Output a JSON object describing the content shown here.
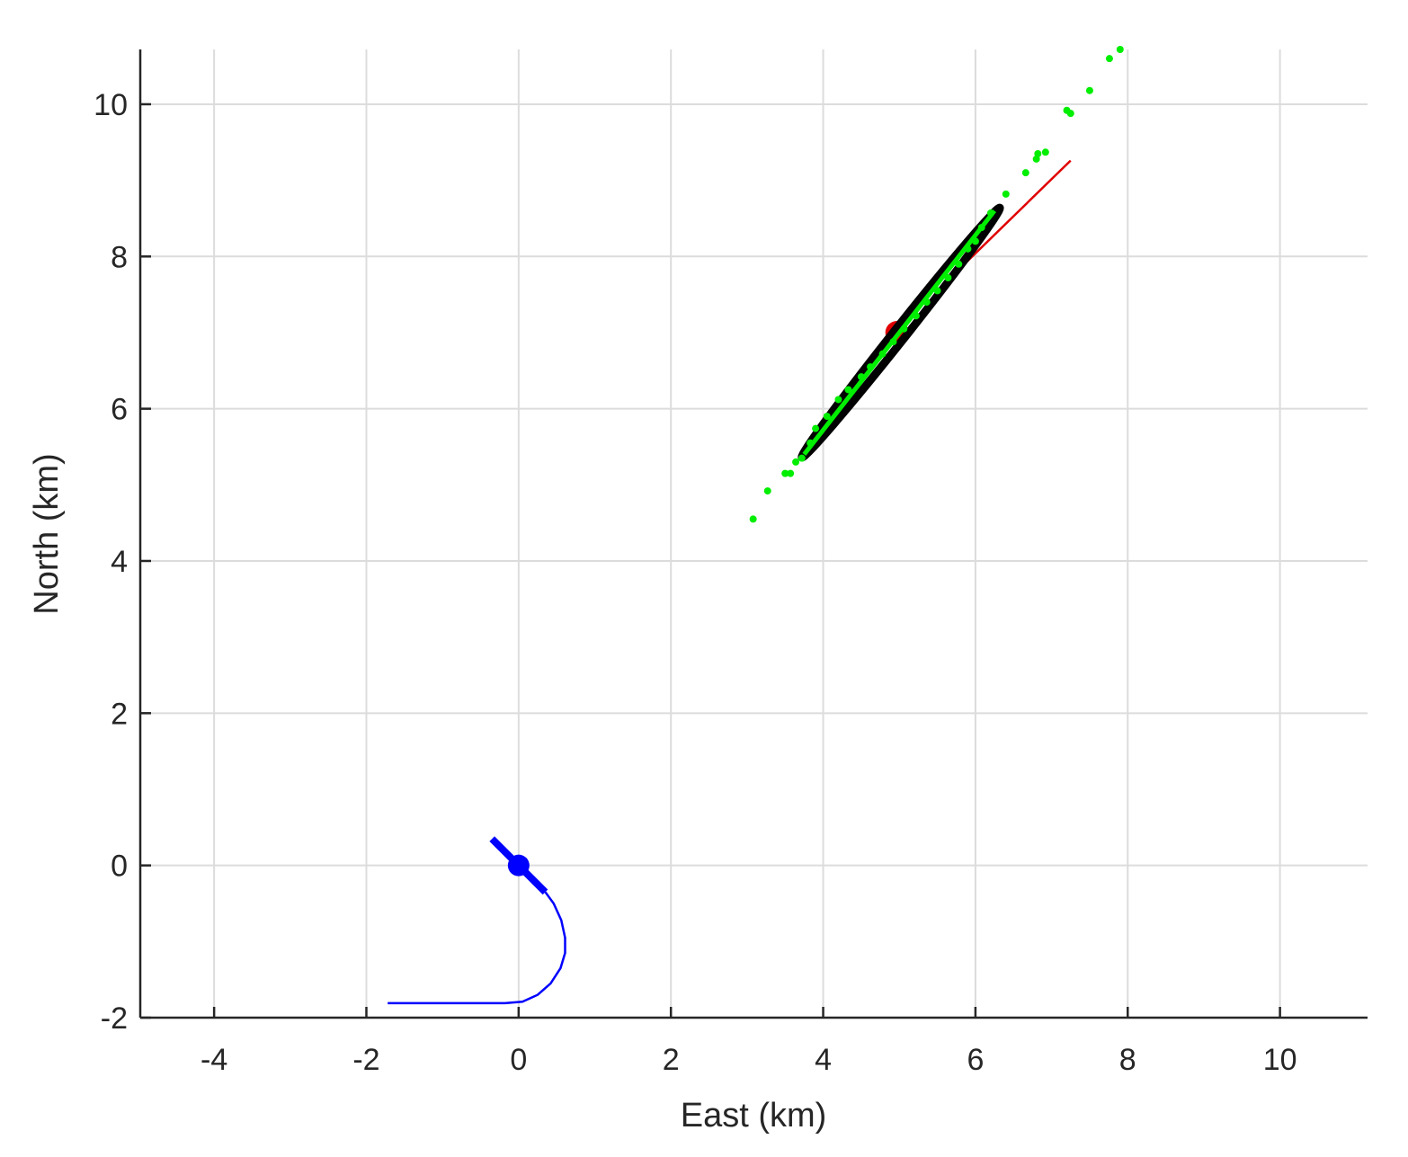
{
  "chart_data": {
    "type": "line",
    "title": "",
    "xlabel": "East (km)",
    "ylabel": "North (km)",
    "xlim": [
      -4.97,
      11.15
    ],
    "ylim": [
      -2,
      10.72
    ],
    "xticks": [
      -4,
      -2,
      0,
      2,
      4,
      6,
      8,
      10
    ],
    "yticks": [
      -2,
      0,
      2,
      4,
      6,
      8,
      10
    ],
    "grid": true,
    "colors": {
      "axis": "#262626",
      "grid": "#dcdcdc",
      "own_track": "#0000ff",
      "target_track": "#e00000",
      "particles": "#00ee00",
      "ellipse": "#000000"
    },
    "own_track": {
      "x": [
        -1.72,
        -0.6,
        -0.18,
        0.05,
        0.25,
        0.42,
        0.55,
        0.61,
        0.61,
        0.56,
        0.46,
        0.35
      ],
      "y": [
        -1.81,
        -1.81,
        -1.81,
        -1.79,
        -1.7,
        -1.55,
        -1.35,
        -1.15,
        -0.95,
        -0.72,
        -0.5,
        -0.35
      ]
    },
    "own_heading": {
      "x": [
        -0.35,
        0.35
      ],
      "y": [
        0.35,
        -0.35
      ]
    },
    "own_position": {
      "x": 0.0,
      "y": 0.0
    },
    "target_track": {
      "x": [
        5.65,
        7.25
      ],
      "y": [
        7.7,
        9.26
      ]
    },
    "target_position": {
      "x": 4.97,
      "y": 7.0
    },
    "estimate_line": {
      "x": [
        3.75,
        6.25
      ],
      "y": [
        5.4,
        8.6
      ]
    },
    "uncertainty_ellipse": {
      "center": [
        5.02,
        7.0
      ],
      "major_axis_end1": [
        3.72,
        5.36
      ],
      "major_axis_end2": [
        6.32,
        8.64
      ],
      "semi_minor_km": 0.08
    },
    "particles": {
      "x": [
        3.08,
        3.27,
        3.5,
        3.57,
        3.64,
        3.72,
        3.83,
        3.9,
        4.05,
        4.2,
        4.33,
        4.5,
        4.62,
        4.78,
        4.92,
        5.06,
        5.22,
        5.36,
        5.5,
        5.64,
        5.78,
        5.9,
        6.0,
        6.08,
        6.2,
        6.4,
        6.66,
        6.8,
        6.82,
        6.92,
        7.2,
        7.25,
        7.5,
        7.76,
        7.9
      ],
      "y": [
        4.55,
        4.92,
        5.15,
        5.15,
        5.3,
        5.35,
        5.55,
        5.74,
        5.9,
        6.12,
        6.25,
        6.42,
        6.55,
        6.72,
        6.88,
        7.05,
        7.22,
        7.4,
        7.55,
        7.72,
        7.9,
        8.1,
        8.2,
        8.38,
        8.57,
        8.82,
        9.1,
        9.28,
        9.35,
        9.37,
        9.92,
        9.88,
        10.18,
        10.6,
        10.72
      ]
    }
  }
}
